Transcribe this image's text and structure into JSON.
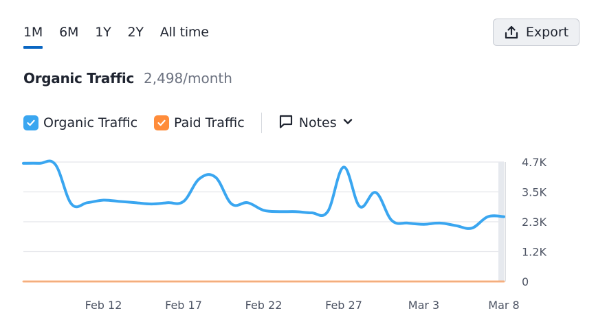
{
  "tabs": [
    {
      "label": "1M",
      "active": true
    },
    {
      "label": "6M",
      "active": false
    },
    {
      "label": "1Y",
      "active": false
    },
    {
      "label": "2Y",
      "active": false
    },
    {
      "label": "All time",
      "active": false
    }
  ],
  "export": {
    "label": "Export"
  },
  "heading": {
    "title": "Organic Traffic",
    "value": "2,498/month"
  },
  "legend": {
    "organic": {
      "label": "Organic Traffic",
      "color": "#3aa6f0",
      "checked": true
    },
    "paid": {
      "label": "Paid Traffic",
      "color": "#ff8c3a",
      "checked": true
    },
    "notes": {
      "label": "Notes"
    }
  },
  "chart_data": {
    "type": "line",
    "title": "",
    "xlabel": "",
    "ylabel": "",
    "ylim": [
      0,
      4700
    ],
    "y_ticks": [
      {
        "value": 0,
        "label": "0"
      },
      {
        "value": 1175,
        "label": "1.2K"
      },
      {
        "value": 2350,
        "label": "2.3K"
      },
      {
        "value": 3525,
        "label": "3.5K"
      },
      {
        "value": 4700,
        "label": "4.7K"
      }
    ],
    "x_ticks": [
      {
        "index": 5,
        "label": "Feb 12"
      },
      {
        "index": 10,
        "label": "Feb 17"
      },
      {
        "index": 15,
        "label": "Feb 22"
      },
      {
        "index": 20,
        "label": "Feb 27"
      },
      {
        "index": 25,
        "label": "Mar 3"
      },
      {
        "index": 30,
        "label": "Mar 8"
      }
    ],
    "grid": true,
    "series": [
      {
        "name": "Organic Traffic",
        "color": "#3aa6f0",
        "values": [
          4650,
          4650,
          4600,
          3050,
          3100,
          3200,
          3150,
          3100,
          3050,
          3100,
          3150,
          4050,
          4100,
          3050,
          3100,
          2800,
          2750,
          2750,
          2700,
          2750,
          4500,
          2950,
          3500,
          2400,
          2300,
          2250,
          2300,
          2200,
          2100,
          2550,
          2550
        ]
      },
      {
        "name": "Paid Traffic",
        "color": "#ff8c3a",
        "values": [
          0,
          0,
          0,
          0,
          0,
          0,
          0,
          0,
          0,
          0,
          0,
          0,
          0,
          0,
          0,
          0,
          0,
          0,
          0,
          0,
          0,
          0,
          0,
          0,
          0,
          0,
          0,
          0,
          0,
          0,
          0
        ]
      }
    ]
  }
}
